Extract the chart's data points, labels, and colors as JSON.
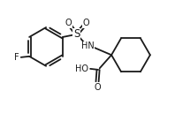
{
  "bg_color": "#ffffff",
  "line_color": "#1a1a1a",
  "lw": 1.3,
  "fs": 7.0,
  "figsize": [
    1.98,
    1.37
  ],
  "dpi": 100,
  "xlim": [
    0,
    9.5
  ],
  "ylim": [
    0,
    6.5
  ]
}
